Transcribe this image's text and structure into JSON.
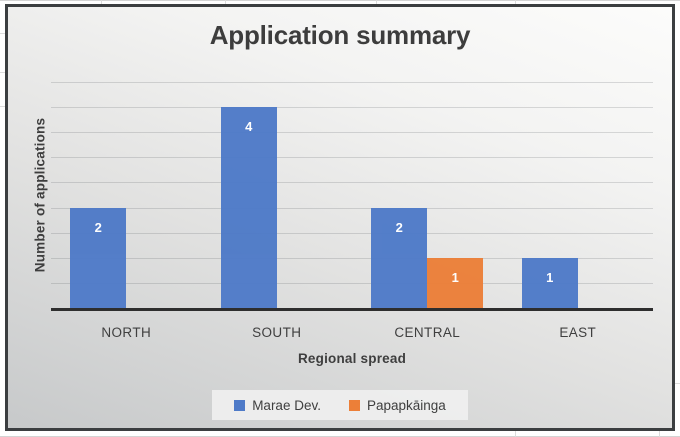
{
  "chart_data": {
    "type": "bar",
    "title": "Application summary",
    "xlabel": "Regional spread",
    "ylabel": "Number of applications",
    "categories": [
      "NORTH",
      "SOUTH",
      "CENTRAL",
      "EAST"
    ],
    "series": [
      {
        "name": "Marae Dev.",
        "color": "#4e7ac8",
        "values": [
          2,
          4,
          2,
          1
        ]
      },
      {
        "name": "Papapkāinga",
        "color": "#ec7f38",
        "values": [
          null,
          null,
          1,
          null
        ]
      }
    ],
    "ylim": [
      0,
      4.5
    ],
    "grid_interval": 0.5,
    "grid": true,
    "y_tick_labels_visible": false,
    "data_labels": true,
    "data_label_color": "#ffffff",
    "legend_position": "bottom"
  },
  "frame": {
    "border_color": "#3b3e40"
  }
}
